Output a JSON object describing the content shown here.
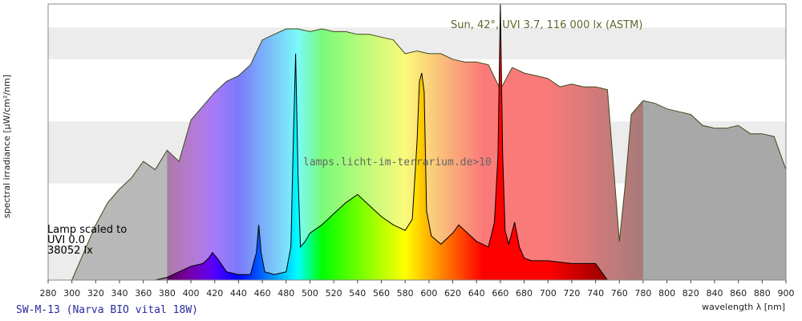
{
  "chart_data": {
    "type": "area",
    "title": "SW-M-13 (Narva BIO vital 18W)",
    "xlabel": "wavelength λ [nm]",
    "ylabel": "spectral irradiance [µW/cm²/nm]",
    "xlim": [
      280,
      900
    ],
    "ylim": [
      0,
      100
    ],
    "xticks": [
      280,
      300,
      320,
      340,
      360,
      380,
      400,
      420,
      440,
      460,
      480,
      500,
      520,
      540,
      560,
      580,
      600,
      620,
      640,
      660,
      680,
      700,
      720,
      740,
      760,
      780,
      800,
      820,
      840,
      860,
      880,
      900
    ],
    "grid": "horizontal bands",
    "annotations": {
      "sun": "Sun, 42°, UVI 3.7, 116 000 lx (ASTM)",
      "watermark": "lamps.licht-im-terrarium.de>10",
      "lamp_line1": "Lamp scaled to",
      "lamp_line2": "UVI 0.0",
      "lamp_line3": "38052 lx"
    },
    "series": [
      {
        "name": "Sun, 42°, UVI 3.7, 116 000 lx (ASTM)",
        "x": [
          300,
          310,
          320,
          330,
          340,
          350,
          360,
          370,
          380,
          390,
          400,
          410,
          420,
          430,
          440,
          450,
          460,
          470,
          480,
          490,
          500,
          510,
          520,
          530,
          540,
          550,
          560,
          570,
          580,
          590,
          600,
          610,
          620,
          630,
          640,
          650,
          660,
          670,
          680,
          690,
          700,
          710,
          720,
          730,
          740,
          750,
          760,
          765,
          770,
          780,
          790,
          800,
          810,
          820,
          830,
          840,
          850,
          860,
          870,
          880,
          890,
          900
        ],
        "y": [
          0,
          10,
          20,
          28,
          33,
          37,
          43,
          40,
          47,
          43,
          58,
          63,
          68,
          72,
          74,
          78,
          87,
          89,
          91,
          91,
          90,
          91,
          90,
          90,
          89,
          89,
          88,
          87,
          82,
          83,
          82,
          82,
          80,
          79,
          79,
          78,
          69,
          77,
          75,
          74,
          73,
          70,
          71,
          70,
          70,
          69,
          14,
          35,
          60,
          65,
          64,
          62,
          61,
          60,
          56,
          55,
          55,
          56,
          53,
          53,
          52,
          40
        ]
      },
      {
        "name": "SW-M-13 (Narva BIO vital 18W)",
        "x": [
          350,
          360,
          370,
          380,
          390,
          400,
          410,
          415,
          418,
          422,
          430,
          440,
          450,
          455,
          457,
          459,
          462,
          470,
          480,
          484,
          486,
          488,
          490,
          492,
          496,
          500,
          510,
          520,
          530,
          540,
          550,
          560,
          570,
          580,
          586,
          590,
          592,
          594,
          596,
          598,
          602,
          610,
          620,
          625,
          630,
          640,
          650,
          655,
          658,
          660,
          662,
          664,
          667,
          672,
          676,
          680,
          686,
          700,
          720,
          740,
          750
        ],
        "y": [
          0,
          0,
          0,
          1,
          3,
          5,
          6,
          8,
          10,
          8,
          3,
          2,
          2,
          10,
          20,
          10,
          3,
          2,
          3,
          12,
          50,
          82,
          38,
          12,
          14,
          17,
          20,
          24,
          28,
          31,
          27,
          23,
          20,
          18,
          22,
          50,
          72,
          75,
          68,
          25,
          16,
          13,
          17,
          20,
          18,
          14,
          12,
          21,
          45,
          100,
          45,
          18,
          13,
          21,
          12,
          8,
          7,
          7,
          6,
          6,
          0
        ]
      }
    ]
  }
}
